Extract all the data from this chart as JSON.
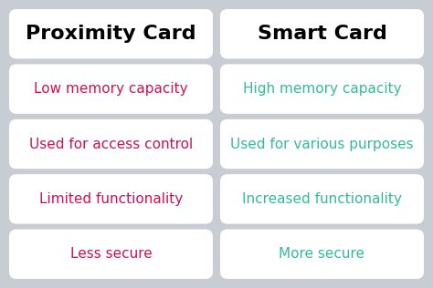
{
  "background_color": "#c8cdd4",
  "header_left": "Proximity Card",
  "header_right": "Smart Card",
  "header_color": "#000000",
  "header_fontsize": 16,
  "header_fontweight": "bold",
  "left_items": [
    "Low memory capacity",
    "Used for access control",
    "Limited functionality",
    "Less secure"
  ],
  "right_items": [
    "High memory capacity",
    "Used for various purposes",
    "Increased functionality",
    "More secure"
  ],
  "left_text_color": "#cc1155",
  "right_text_color": "#33bb99",
  "item_fontsize": 11,
  "box_facecolor": "#ffffff",
  "box_edgecolor": "#ffffff"
}
